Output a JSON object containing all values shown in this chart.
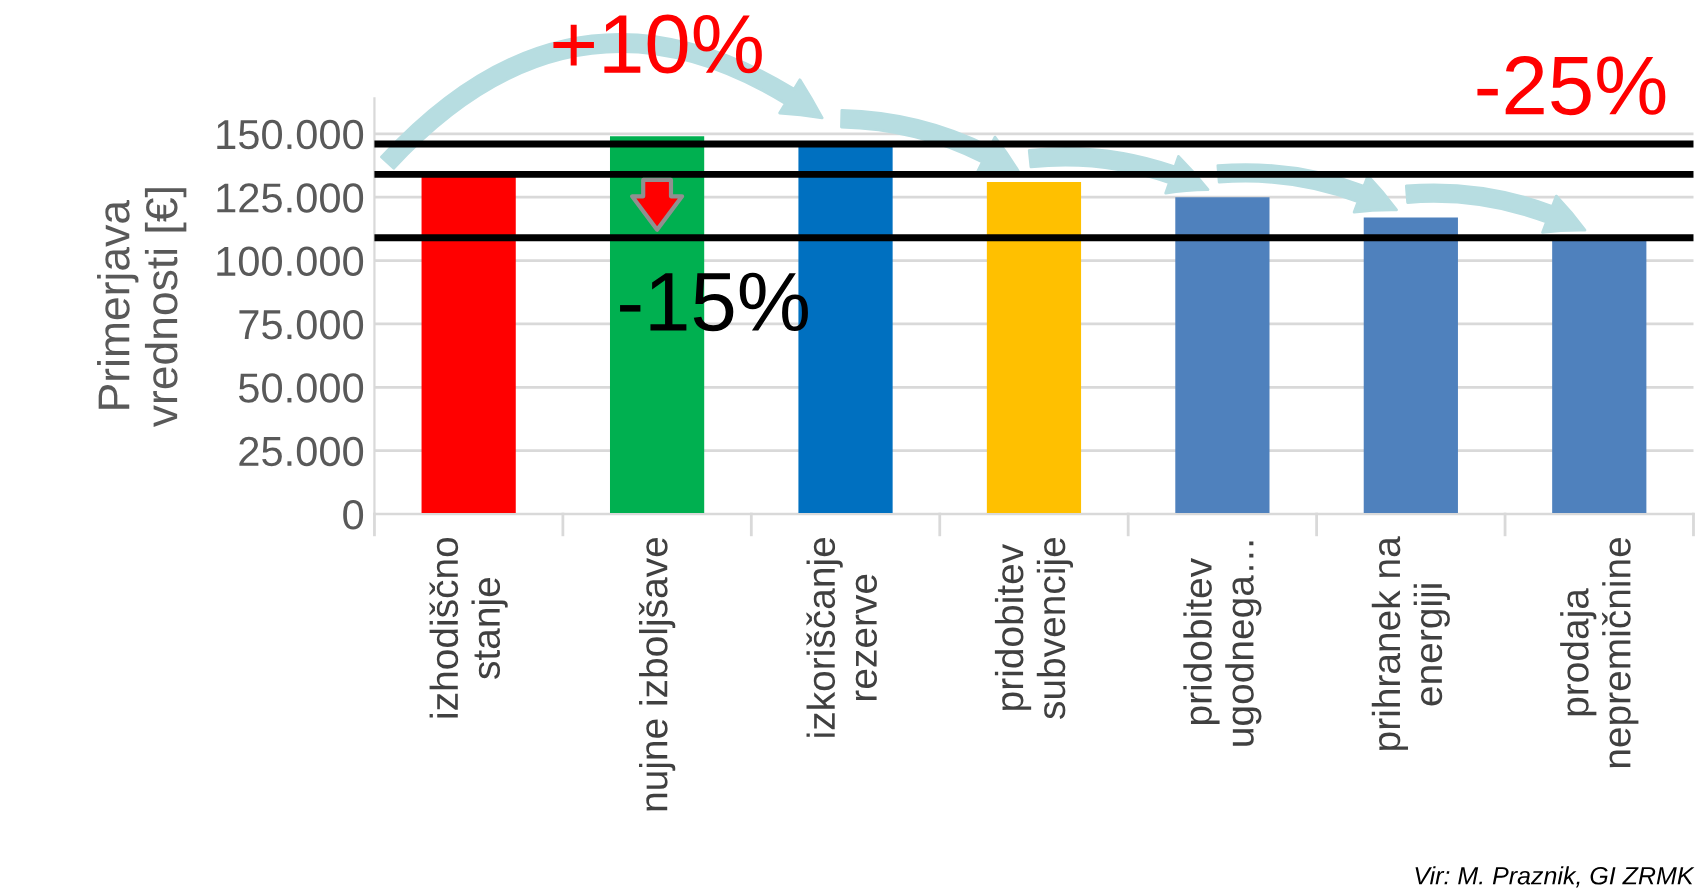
{
  "chart_data": {
    "type": "bar",
    "categories": [
      "izhodiščno\nstanje",
      "nujne izboljšave",
      "izkoriščanje\nrezerve",
      "pridobitev\nsubvencije",
      "pridobitev\nugodnega…",
      "prihranek na\nenergiji",
      "prodaja\nnepremičnine"
    ],
    "values": [
      133000,
      149000,
      147000,
      131000,
      125000,
      117000,
      109000
    ],
    "colors": [
      "#ff0000",
      "#00b050",
      "#0070c0",
      "#ffc000",
      "#4f81bd",
      "#4f81bd",
      "#4f81bd"
    ],
    "ylabel": "Primerjava\nvrednosti [€]",
    "ylim": [
      0,
      164000
    ],
    "yticks": [
      0,
      {
        "value": 25000,
        "label": "25.000"
      },
      {
        "value": 50000,
        "label": "50.000"
      },
      {
        "value": 75000,
        "label": "75.000"
      },
      {
        "value": 100000,
        "label": "100.000"
      },
      {
        "value": 125000,
        "label": "125.000"
      },
      {
        "value": 150000,
        "label": "150.000"
      }
    ],
    "grid": "y",
    "ref_lines": [
      {
        "axis": "y",
        "value": 146000,
        "color": "#000000"
      },
      {
        "axis": "y",
        "value": 134000,
        "color": "#000000"
      },
      {
        "axis": "y",
        "value": 109000,
        "color": "#000000"
      }
    ],
    "annotations": [
      "+10%",
      "-15%",
      "-25%",
      "Vir: M. Praznik, GI ZRMK"
    ]
  }
}
